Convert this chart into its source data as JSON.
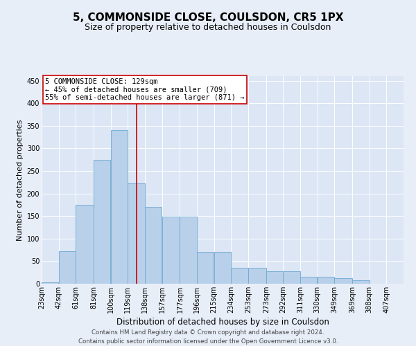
{
  "title": "5, COMMONSIDE CLOSE, COULSDON, CR5 1PX",
  "subtitle": "Size of property relative to detached houses in Coulsdon",
  "xlabel": "Distribution of detached houses by size in Coulsdon",
  "ylabel": "Number of detached properties",
  "footnote1": "Contains HM Land Registry data © Crown copyright and database right 2024.",
  "footnote2": "Contains public sector information licensed under the Open Government Licence v3.0.",
  "bin_labels": [
    "23sqm",
    "42sqm",
    "61sqm",
    "81sqm",
    "100sqm",
    "119sqm",
    "138sqm",
    "157sqm",
    "177sqm",
    "196sqm",
    "215sqm",
    "234sqm",
    "253sqm",
    "273sqm",
    "292sqm",
    "311sqm",
    "330sqm",
    "349sqm",
    "369sqm",
    "388sqm",
    "407sqm"
  ],
  "bar_values": [
    3,
    72,
    175,
    275,
    340,
    222,
    170,
    148,
    148,
    70,
    70,
    36,
    36,
    27,
    27,
    15,
    15,
    13,
    7,
    0,
    0
  ],
  "bar_color": "#b8d0ea",
  "bar_edge_color": "#6fa8d0",
  "vline_x": 129,
  "vline_color": "#cc0000",
  "annotation_text": "5 COMMONSIDE CLOSE: 129sqm\n← 45% of detached houses are smaller (709)\n55% of semi-detached houses are larger (871) →",
  "annotation_box_color": "#ffffff",
  "annotation_box_edge": "#cc0000",
  "bg_color": "#e8eef8",
  "plot_bg_color": "#dce6f5",
  "ylim": [
    0,
    460
  ],
  "yticks": [
    0,
    50,
    100,
    150,
    200,
    250,
    300,
    350,
    400,
    450
  ],
  "title_fontsize": 11,
  "subtitle_fontsize": 9,
  "xlabel_fontsize": 8.5,
  "ylabel_fontsize": 8,
  "tick_fontsize": 7,
  "annot_fontsize": 7.5
}
